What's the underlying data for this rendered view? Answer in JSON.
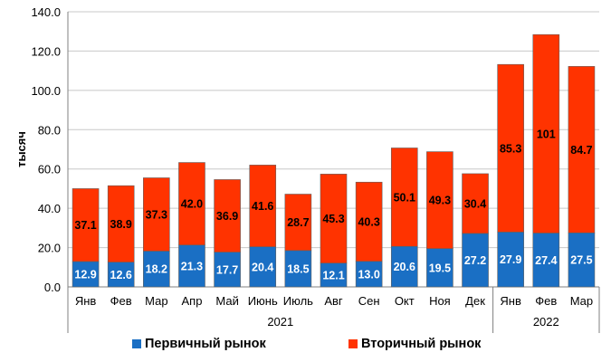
{
  "chart_data": {
    "type": "bar",
    "stacked": true,
    "ylabel": "тысяч",
    "ylim": [
      0,
      140
    ],
    "yticks": [
      "0.0",
      "20.0",
      "40.0",
      "60.0",
      "80.0",
      "100.0",
      "120.0",
      "140.0"
    ],
    "categories": [
      "Янв",
      "Фев",
      "Мар",
      "Апр",
      "Май",
      "Июнь",
      "Июль",
      "Авг",
      "Сен",
      "Окт",
      "Ноя",
      "Дек",
      "Янв",
      "Фев",
      "Мар"
    ],
    "year_groups": [
      {
        "label": "2021",
        "count": 12
      },
      {
        "label": "2022",
        "count": 3
      }
    ],
    "series": [
      {
        "name": "Первичный рынок",
        "color": "#1a6fc4",
        "values": [
          12.9,
          12.6,
          18.2,
          21.3,
          17.7,
          20.4,
          18.5,
          12.1,
          13.0,
          20.6,
          19.5,
          27.2,
          27.9,
          27.4,
          27.5
        ],
        "labels": [
          "12.9",
          "12.6",
          "18.2",
          "21.3",
          "17.7",
          "20.4",
          "18.5",
          "12.1",
          "13.0",
          "20.6",
          "19.5",
          "27.2",
          "27.9",
          "27.4",
          "27.5"
        ],
        "label_color": "#ffffff"
      },
      {
        "name": "Вторичный рынок",
        "color": "#ff3300",
        "values": [
          37.1,
          38.9,
          37.3,
          42.0,
          36.9,
          41.6,
          28.7,
          45.3,
          40.3,
          50.1,
          49.3,
          30.4,
          85.3,
          101,
          84.7
        ],
        "labels": [
          "37.1",
          "38.9",
          "37.3",
          "42.0",
          "36.9",
          "41.6",
          "28.7",
          "45.3",
          "40.3",
          "50.1",
          "49.3",
          "30.4",
          "85.3",
          "101",
          "84.7"
        ],
        "label_color": "#000000"
      }
    ],
    "grid": "horizontal",
    "legend_position": "bottom"
  }
}
